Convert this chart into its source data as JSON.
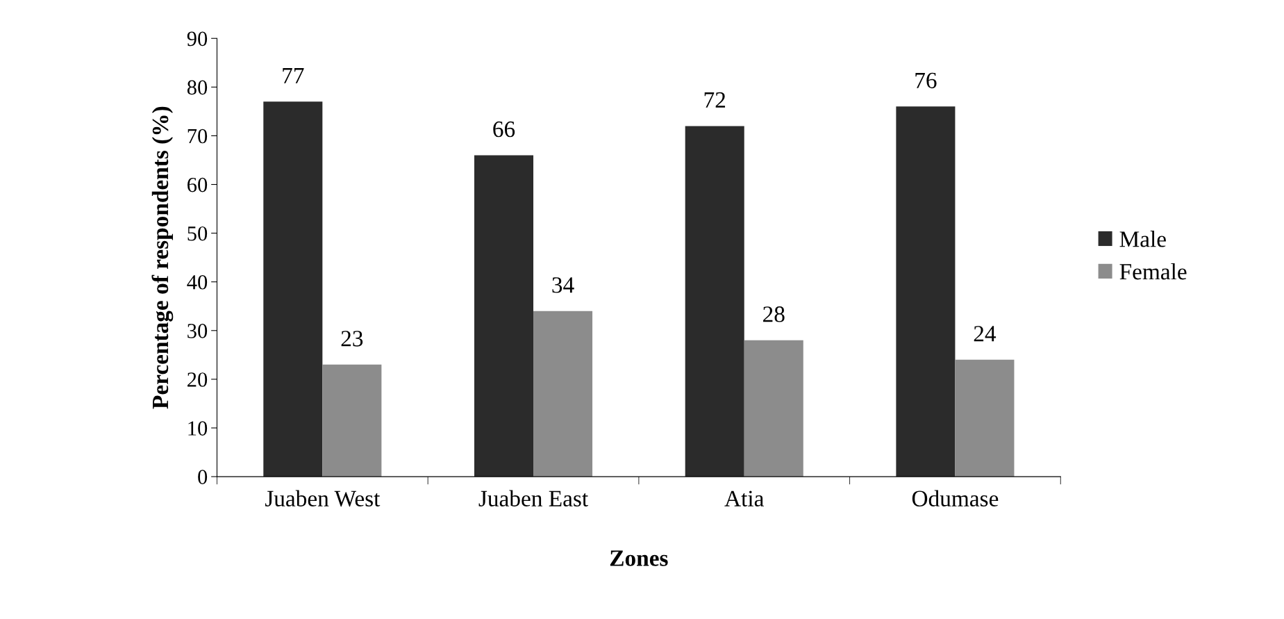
{
  "chart_data": {
    "type": "bar",
    "xlabel": "Zones",
    "ylabel": "Percentage of respondents (%)",
    "categories": [
      "Juaben West",
      "Juaben East",
      "Atia",
      "Odumase"
    ],
    "series": [
      {
        "name": "Male",
        "color": "#2b2b2b",
        "values": [
          77,
          66,
          72,
          76
        ]
      },
      {
        "name": "Female",
        "color": "#8c8c8c",
        "values": [
          23,
          34,
          28,
          24
        ]
      }
    ],
    "ylim": [
      0,
      90
    ],
    "yticks": [
      0,
      10,
      20,
      30,
      40,
      50,
      60,
      70,
      80,
      90
    ],
    "data_labels": true,
    "legend": "right",
    "grid": false
  }
}
